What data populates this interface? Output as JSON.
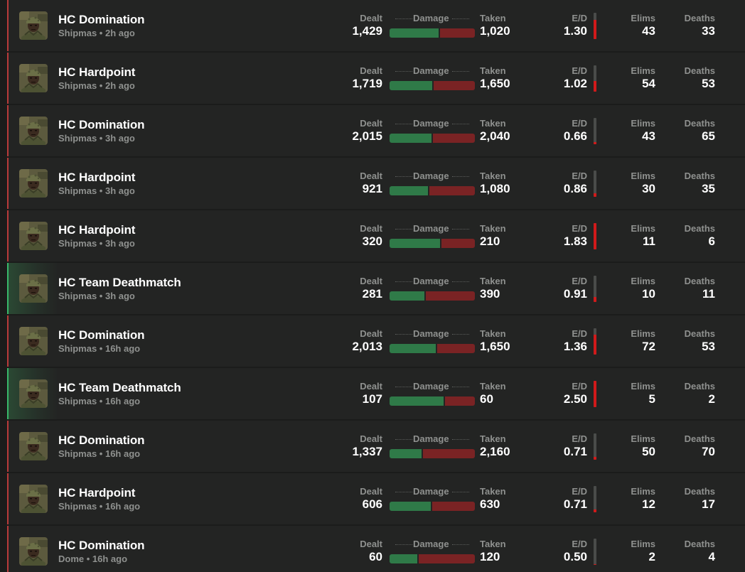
{
  "labels": {
    "dealt": "Dealt",
    "damage": "Damage",
    "taken": "Taken",
    "ed": "E/D",
    "elims": "Elims",
    "deaths": "Deaths"
  },
  "colors": {
    "loss_accent": "#b83a3a",
    "win_accent": "#39b86a",
    "damage_dealt": "#2f7a48",
    "damage_taken": "#7a2324",
    "ed_bar": "#d11a1a"
  },
  "avatar_icon": "soldier-avatar-icon",
  "matches": [
    {
      "mode": "HC Domination",
      "subtitle": "Shipmas • 2h ago",
      "result": "loss",
      "dealt": "1,429",
      "taken": "1,020",
      "dealt_num": 1429,
      "taken_num": 1020,
      "ed": "1.30",
      "ed_level": 0.72,
      "elims": "43",
      "deaths": "33"
    },
    {
      "mode": "HC Hardpoint",
      "subtitle": "Shipmas • 2h ago",
      "result": "loss",
      "dealt": "1,719",
      "taken": "1,650",
      "dealt_num": 1719,
      "taken_num": 1650,
      "ed": "1.02",
      "ed_level": 0.4,
      "elims": "54",
      "deaths": "53"
    },
    {
      "mode": "HC Domination",
      "subtitle": "Shipmas • 3h ago",
      "result": "loss",
      "dealt": "2,015",
      "taken": "2,040",
      "dealt_num": 2015,
      "taken_num": 2040,
      "ed": "0.66",
      "ed_level": 0.08,
      "elims": "43",
      "deaths": "65"
    },
    {
      "mode": "HC Hardpoint",
      "subtitle": "Shipmas • 3h ago",
      "result": "loss",
      "dealt": "921",
      "taken": "1,080",
      "dealt_num": 921,
      "taken_num": 1080,
      "ed": "0.86",
      "ed_level": 0.14,
      "elims": "30",
      "deaths": "35"
    },
    {
      "mode": "HC Hardpoint",
      "subtitle": "Shipmas • 3h ago",
      "result": "loss",
      "dealt": "320",
      "taken": "210",
      "dealt_num": 320,
      "taken_num": 210,
      "ed": "1.83",
      "ed_level": 1.0,
      "elims": "11",
      "deaths": "6"
    },
    {
      "mode": "HC Team Deathmatch",
      "subtitle": "Shipmas • 3h ago",
      "result": "win",
      "dealt": "281",
      "taken": "390",
      "dealt_num": 281,
      "taken_num": 390,
      "ed": "0.91",
      "ed_level": 0.2,
      "elims": "10",
      "deaths": "11"
    },
    {
      "mode": "HC Domination",
      "subtitle": "Shipmas • 16h ago",
      "result": "loss",
      "dealt": "2,013",
      "taken": "1,650",
      "dealt_num": 2013,
      "taken_num": 1650,
      "ed": "1.36",
      "ed_level": 0.75,
      "elims": "72",
      "deaths": "53"
    },
    {
      "mode": "HC Team Deathmatch",
      "subtitle": "Shipmas • 16h ago",
      "result": "win",
      "dealt": "107",
      "taken": "60",
      "dealt_num": 107,
      "taken_num": 60,
      "ed": "2.50",
      "ed_level": 1.0,
      "elims": "5",
      "deaths": "2"
    },
    {
      "mode": "HC Domination",
      "subtitle": "Shipmas • 16h ago",
      "result": "loss",
      "dealt": "1,337",
      "taken": "2,160",
      "dealt_num": 1337,
      "taken_num": 2160,
      "ed": "0.71",
      "ed_level": 0.1,
      "elims": "50",
      "deaths": "70"
    },
    {
      "mode": "HC Hardpoint",
      "subtitle": "Shipmas • 16h ago",
      "result": "loss",
      "dealt": "606",
      "taken": "630",
      "dealt_num": 606,
      "taken_num": 630,
      "ed": "0.71",
      "ed_level": 0.1,
      "elims": "12",
      "deaths": "17"
    },
    {
      "mode": "HC Domination",
      "subtitle": "Dome • 16h ago",
      "result": "loss",
      "dealt": "60",
      "taken": "120",
      "dealt_num": 60,
      "taken_num": 120,
      "ed": "0.50",
      "ed_level": 0.04,
      "elims": "2",
      "deaths": "4"
    }
  ]
}
